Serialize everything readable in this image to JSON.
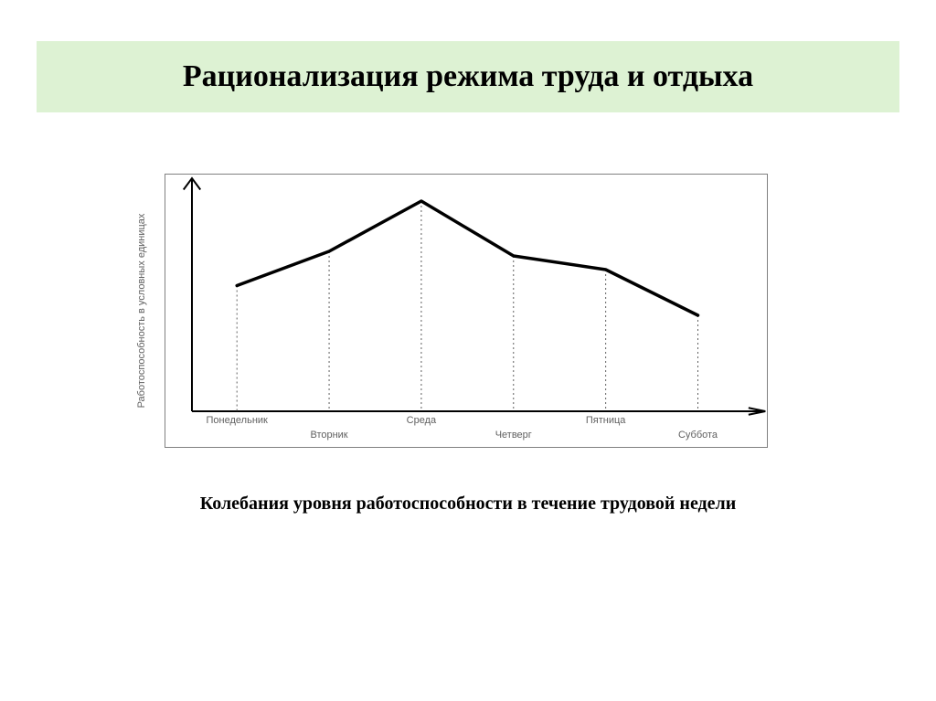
{
  "title": "Рационализация режима труда и отдыха",
  "title_bg_color": "#ddf2d3",
  "caption": "Колебания уровня работоспособности в течение трудовой недели",
  "chart": {
    "type": "line",
    "y_axis_label": "Работоспособность в условных единицах",
    "x_categories": [
      "Понедельник",
      "Вторник",
      "Среда",
      "Четверг",
      "Пятница",
      "Суббота"
    ],
    "x_label_rows": [
      1,
      2,
      1,
      2,
      1,
      2
    ],
    "x_positions_pct": [
      8,
      24.4,
      40.8,
      57.2,
      73.6,
      90
    ],
    "y_values": [
      55,
      70,
      92,
      68,
      62,
      42
    ],
    "y_range": [
      0,
      100
    ],
    "line_color": "#000000",
    "line_width": 3.5,
    "axis_color": "#000000",
    "axis_width": 2,
    "frame_color": "#808080",
    "dropline_color": "#606060",
    "dropline_dash": "2,3",
    "label_fontsize": 11,
    "label_color": "#606060",
    "background_color": "#ffffff"
  }
}
